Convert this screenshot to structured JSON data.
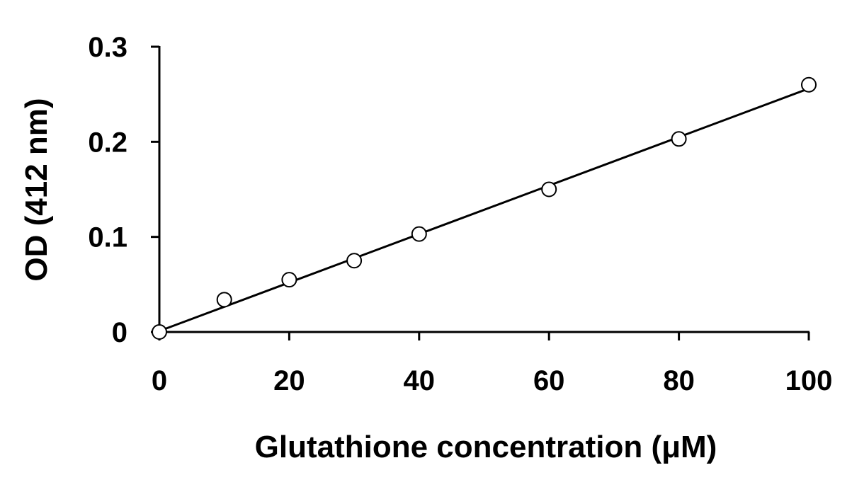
{
  "chart_data": {
    "type": "scatter",
    "title": "",
    "xlabel": "Glutathione concentration (μM)",
    "ylabel": "OD (412 nm)",
    "xlim": [
      0,
      100
    ],
    "ylim": [
      0,
      0.3
    ],
    "x_ticks": [
      0,
      20,
      40,
      60,
      80,
      100
    ],
    "x_tick_labels": [
      "0",
      "20",
      "40",
      "60",
      "80",
      "100"
    ],
    "y_ticks": [
      0,
      0.1,
      0.2,
      0.3
    ],
    "y_tick_labels": [
      "0",
      "0.1",
      "0.2",
      "0.3"
    ],
    "grid": false,
    "legend": "none",
    "series": [
      {
        "x": [
          0,
          10,
          20,
          30,
          40,
          60,
          80,
          100
        ],
        "y": [
          0,
          0.034,
          0.055,
          0.075,
          0.103,
          0.15,
          0.203,
          0.26
        ],
        "marker": "open-circle"
      }
    ],
    "trendline": {
      "type": "linear",
      "x": [
        0,
        100
      ],
      "y": [
        0.001,
        0.256
      ]
    },
    "colors": {
      "axis": "#000000",
      "marker_stroke": "#000000",
      "marker_fill": "#ffffff",
      "line": "#000000"
    }
  }
}
